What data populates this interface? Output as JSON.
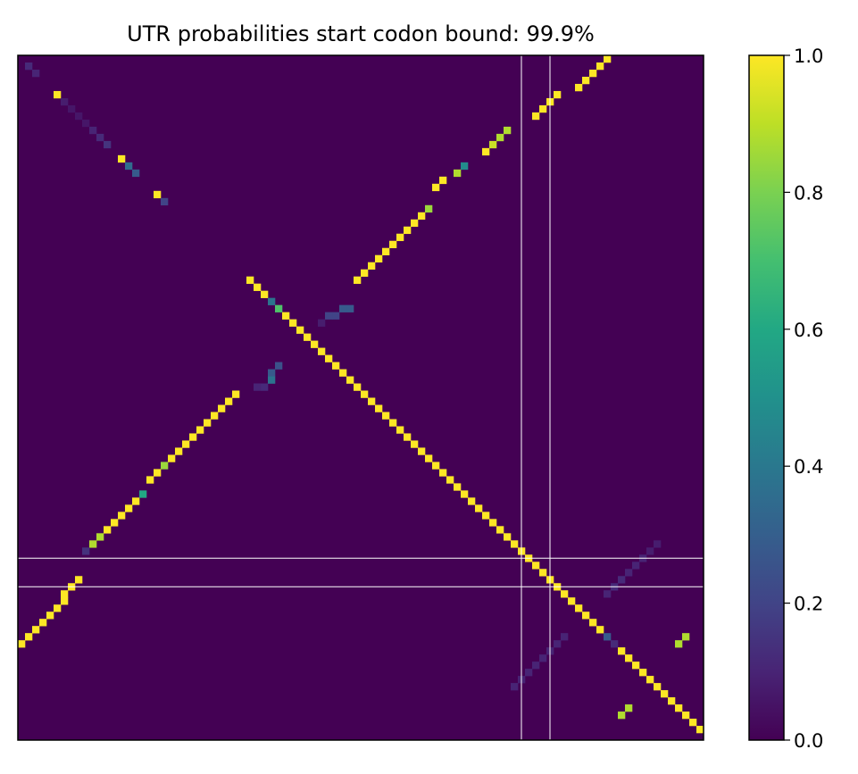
{
  "chart_data": {
    "type": "heatmap",
    "title": "UTR probabilities start codon bound: 99.9%",
    "size": 96,
    "xlabel": "",
    "ylabel": "",
    "axes_ticks_visible": false,
    "colormap": "viridis",
    "colorbar": {
      "range": [
        0.0,
        1.0
      ],
      "ticks": [
        "0.0",
        "0.2",
        "0.4",
        "0.6",
        "0.8",
        "1.0"
      ]
    },
    "background_value": 0.0,
    "guide_lines": {
      "color": "#ffffff",
      "vertical_columns": [
        70.5,
        74.5
      ],
      "horizontal_rows": [
        70.5,
        74.5
      ]
    },
    "diagonals": [
      {
        "name": "main",
        "points": [
          [
            31,
            31
          ],
          [
            95,
            95
          ]
        ],
        "value": 1.0
      },
      {
        "name": "upper-left short",
        "points": [
          [
            1,
            1
          ],
          [
            20,
            20
          ]
        ],
        "value": 0.1
      },
      {
        "name": "anti-diagonal upper",
        "points": [
          [
            47,
            30
          ],
          [
            82,
            0
          ]
        ],
        "value": 0.96
      },
      {
        "name": "anti-diagonal lower",
        "points": [
          [
            0,
            81
          ],
          [
            30,
            47
          ]
        ],
        "value": 0.96
      },
      {
        "name": "lower-right anti",
        "points": [
          [
            83,
            92
          ],
          [
            92,
            83
          ]
        ],
        "value": 0.1
      }
    ],
    "cells": [
      [
        1,
        1,
        0.12
      ],
      [
        2,
        2,
        0.1
      ],
      [
        5,
        5,
        1.0
      ],
      [
        6,
        6,
        0.08
      ],
      [
        7,
        7,
        0.06
      ],
      [
        8,
        8,
        0.06
      ],
      [
        9,
        9,
        0.06
      ],
      [
        10,
        10,
        0.1
      ],
      [
        11,
        11,
        0.12
      ],
      [
        12,
        12,
        0.15
      ],
      [
        14,
        14,
        1.0
      ],
      [
        15,
        15,
        0.35
      ],
      [
        16,
        16,
        0.28
      ],
      [
        19,
        19,
        1.0
      ],
      [
        20,
        20,
        0.2
      ],
      [
        32,
        31,
        1.0
      ],
      [
        33,
        32,
        1.0
      ],
      [
        34,
        33,
        1.0
      ],
      [
        35,
        34,
        0.38
      ],
      [
        36,
        35,
        0.72
      ],
      [
        37,
        36,
        1.0
      ],
      [
        38,
        37,
        1.0
      ],
      [
        39,
        38,
        1.0
      ],
      [
        40,
        39,
        1.0
      ],
      [
        41,
        40,
        1.0
      ],
      [
        42,
        41,
        1.0
      ],
      [
        43,
        42,
        1.0
      ],
      [
        44,
        43,
        1.0
      ],
      [
        45,
        44,
        1.0
      ],
      [
        46,
        45,
        1.0
      ],
      [
        47,
        46,
        1.0
      ],
      [
        48,
        47,
        1.0
      ],
      [
        49,
        48,
        1.0
      ],
      [
        50,
        49,
        1.0
      ],
      [
        51,
        50,
        1.0
      ],
      [
        52,
        51,
        1.0
      ],
      [
        53,
        52,
        1.0
      ],
      [
        54,
        53,
        1.0
      ],
      [
        55,
        54,
        1.0
      ],
      [
        56,
        55,
        1.0
      ],
      [
        57,
        56,
        1.0
      ],
      [
        58,
        57,
        1.0
      ],
      [
        59,
        58,
        1.0
      ],
      [
        60,
        59,
        1.0
      ],
      [
        61,
        60,
        1.0
      ],
      [
        62,
        61,
        1.0
      ],
      [
        63,
        62,
        1.0
      ],
      [
        64,
        63,
        1.0
      ],
      [
        65,
        64,
        1.0
      ],
      [
        66,
        65,
        1.0
      ],
      [
        67,
        66,
        1.0
      ],
      [
        68,
        67,
        1.0
      ],
      [
        69,
        68,
        1.0
      ],
      [
        70,
        69,
        1.0
      ],
      [
        71,
        70,
        1.0
      ],
      [
        72,
        71,
        1.0
      ],
      [
        73,
        72,
        1.0
      ],
      [
        74,
        73,
        1.0
      ],
      [
        75,
        74,
        1.0
      ],
      [
        76,
        75,
        1.0
      ],
      [
        77,
        76,
        1.0
      ],
      [
        78,
        77,
        1.0
      ],
      [
        79,
        78,
        1.0
      ],
      [
        80,
        79,
        1.0
      ],
      [
        81,
        80,
        1.0
      ],
      [
        82,
        81,
        0.28
      ],
      [
        83,
        82,
        0.12
      ],
      [
        84,
        83,
        1.0
      ],
      [
        85,
        84,
        1.0
      ],
      [
        86,
        85,
        1.0
      ],
      [
        87,
        86,
        1.0
      ],
      [
        88,
        87,
        1.0
      ],
      [
        89,
        88,
        1.0
      ],
      [
        90,
        89,
        1.0
      ],
      [
        91,
        90,
        1.0
      ],
      [
        92,
        91,
        1.0
      ],
      [
        93,
        92,
        1.0
      ],
      [
        94,
        93,
        1.0
      ],
      [
        95,
        94,
        1.0
      ],
      [
        82,
        0,
        1.0
      ],
      [
        81,
        1,
        1.0
      ],
      [
        80,
        2,
        1.0
      ],
      [
        79,
        3,
        1.0
      ],
      [
        78,
        4,
        1.0
      ],
      [
        75,
        5,
        1.0
      ],
      [
        74,
        6,
        1.0
      ],
      [
        73,
        7,
        1.0
      ],
      [
        72,
        8,
        1.0
      ],
      [
        68,
        10,
        0.88
      ],
      [
        67,
        11,
        0.88
      ],
      [
        66,
        12,
        0.92
      ],
      [
        65,
        13,
        1.0
      ],
      [
        62,
        15,
        0.48
      ],
      [
        61,
        16,
        0.88
      ],
      [
        59,
        17,
        1.0
      ],
      [
        58,
        18,
        1.0
      ],
      [
        57,
        21,
        0.85
      ],
      [
        56,
        22,
        1.0
      ],
      [
        55,
        23,
        1.0
      ],
      [
        54,
        24,
        1.0
      ],
      [
        53,
        25,
        1.0
      ],
      [
        52,
        26,
        1.0
      ],
      [
        51,
        27,
        1.0
      ],
      [
        50,
        28,
        1.0
      ],
      [
        49,
        29,
        1.0
      ],
      [
        48,
        30,
        1.0
      ],
      [
        47,
        31,
        1.0
      ],
      [
        46,
        35,
        0.28
      ],
      [
        45,
        35,
        0.28
      ],
      [
        44,
        36,
        0.2
      ],
      [
        43,
        36,
        0.2
      ],
      [
        42,
        37,
        0.08
      ],
      [
        36,
        43,
        0.25
      ],
      [
        35,
        44,
        0.28
      ],
      [
        35,
        45,
        0.38
      ],
      [
        34,
        46,
        0.12
      ],
      [
        33,
        46,
        0.1
      ],
      [
        30,
        47,
        1.0
      ],
      [
        29,
        48,
        1.0
      ],
      [
        28,
        49,
        1.0
      ],
      [
        27,
        50,
        1.0
      ],
      [
        26,
        51,
        1.0
      ],
      [
        25,
        52,
        1.0
      ],
      [
        24,
        53,
        1.0
      ],
      [
        23,
        54,
        1.0
      ],
      [
        22,
        55,
        1.0
      ],
      [
        21,
        56,
        1.0
      ],
      [
        20,
        57,
        0.85
      ],
      [
        19,
        58,
        1.0
      ],
      [
        18,
        59,
        1.0
      ],
      [
        16,
        62,
        1.0
      ],
      [
        15,
        63,
        1.0
      ],
      [
        16,
        62,
        1.0
      ],
      [
        17,
        61,
        0.6
      ],
      [
        15,
        63,
        1.0
      ],
      [
        14,
        64,
        1.0
      ],
      [
        13,
        65,
        1.0
      ],
      [
        12,
        66,
        1.0
      ],
      [
        11,
        67,
        0.88
      ],
      [
        10,
        68,
        0.88
      ],
      [
        9,
        69,
        0.14
      ],
      [
        8,
        73,
        1.0
      ],
      [
        7,
        74,
        1.0
      ],
      [
        6,
        75,
        1.0
      ],
      [
        6,
        76,
        1.0
      ],
      [
        5,
        77,
        1.0
      ],
      [
        4,
        78,
        1.0
      ],
      [
        3,
        79,
        1.0
      ],
      [
        2,
        80,
        1.0
      ],
      [
        1,
        81,
        1.0
      ],
      [
        0,
        82,
        1.0
      ],
      [
        84,
        92,
        0.88
      ],
      [
        85,
        91,
        0.88
      ],
      [
        85,
        91,
        0.88
      ],
      [
        84,
        92,
        0.88
      ],
      [
        93,
        81,
        0.88
      ],
      [
        92,
        82,
        0.88
      ],
      [
        89,
        68,
        0.08
      ],
      [
        88,
        69,
        0.08
      ],
      [
        87,
        70,
        0.1
      ],
      [
        86,
        71,
        0.1
      ],
      [
        85,
        72,
        0.1
      ],
      [
        84,
        73,
        0.12
      ],
      [
        83,
        74,
        0.12
      ],
      [
        82,
        75,
        0.1
      ],
      [
        76,
        81,
        0.1
      ],
      [
        75,
        82,
        0.1
      ],
      [
        74,
        83,
        0.1
      ],
      [
        73,
        84,
        0.1
      ],
      [
        72,
        85,
        0.1
      ],
      [
        71,
        86,
        0.1
      ],
      [
        70,
        87,
        0.1
      ],
      [
        69,
        88,
        0.1
      ]
    ]
  }
}
